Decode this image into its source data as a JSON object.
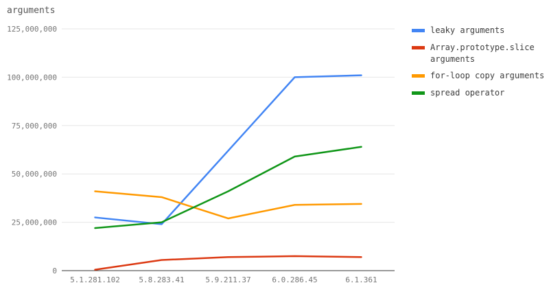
{
  "chart_data": {
    "type": "line",
    "title": "arguments",
    "xlabel": "",
    "ylabel": "",
    "grid": true,
    "legend_position": "right",
    "categories": [
      "5.1.281.102",
      "5.8.283.41",
      "5.9.211.37",
      "6.0.286.45",
      "6.1.361"
    ],
    "series": [
      {
        "name": "leaky arguments",
        "color": "#4285f4",
        "values": [
          27500000,
          24000000,
          62000000,
          100000000,
          101000000
        ]
      },
      {
        "name": "Array.prototype.slice arguments",
        "color": "#dc3912",
        "values": [
          500000,
          5500000,
          7000000,
          7500000,
          7000000
        ]
      },
      {
        "name": "for-loop copy arguments",
        "color": "#ff9900",
        "values": [
          41000000,
          38000000,
          27000000,
          34000000,
          34500000
        ]
      },
      {
        "name": "spread operator",
        "color": "#109618",
        "values": [
          22000000,
          25000000,
          41000000,
          59000000,
          64000000
        ]
      }
    ],
    "ylim": [
      0,
      125000000
    ],
    "yticks": [
      {
        "value": 0,
        "label": "0"
      },
      {
        "value": 25000000,
        "label": "25,000,000"
      },
      {
        "value": 50000000,
        "label": "50,000,000"
      },
      {
        "value": 75000000,
        "label": "75,000,000"
      },
      {
        "value": 100000000,
        "label": "100,000,000"
      },
      {
        "value": 125000000,
        "label": "125,000,000"
      }
    ],
    "colors": {
      "grid": "#e6e6e6",
      "axis": "#333333",
      "tick": "#757575",
      "title": "#555555",
      "legend_text": "#3c3c3c"
    }
  }
}
